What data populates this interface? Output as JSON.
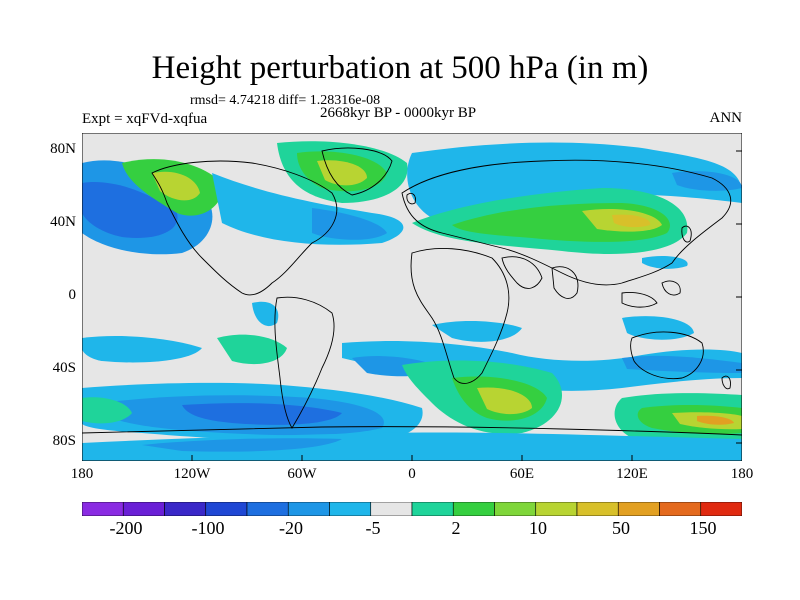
{
  "title": "Height perturbation at 500 hPa (in m)",
  "stats": "rmsd= 4.74218 diff= 1.28316e-08",
  "period": "2668kyr BP - 0000kyr BP",
  "expt": "Expt = xqFVd-xqfua",
  "season": "ANN",
  "lat_ticks": [
    "80N",
    "40N",
    "0",
    "40S",
    "80S"
  ],
  "lon_ticks": [
    "180",
    "120W",
    "60W",
    "0",
    "60E",
    "120E",
    "180"
  ],
  "colorbar": {
    "labels": [
      "-200",
      "-100",
      "-20",
      "-5",
      "2",
      "10",
      "50",
      "150"
    ],
    "colors": [
      "#8a2be2",
      "#6a1fd6",
      "#3a28c8",
      "#1f47d4",
      "#1e6fe0",
      "#1e96e6",
      "#1fb6ea",
      "#e6e6e6",
      "#1fd49a",
      "#35cf40",
      "#7fd63a",
      "#b8d432",
      "#d8c02a",
      "#e2a022",
      "#e46a1e",
      "#e02a10"
    ]
  },
  "legend_colors": {
    "neutral": "#e6e6e6",
    "light_blue": "#1fb6ea",
    "mid_blue": "#1e96e6",
    "blue": "#1e6fe0",
    "green_teal": "#1fd49a",
    "green": "#35cf40",
    "yellow_green": "#b8d432",
    "orange": "#e2a022"
  }
}
